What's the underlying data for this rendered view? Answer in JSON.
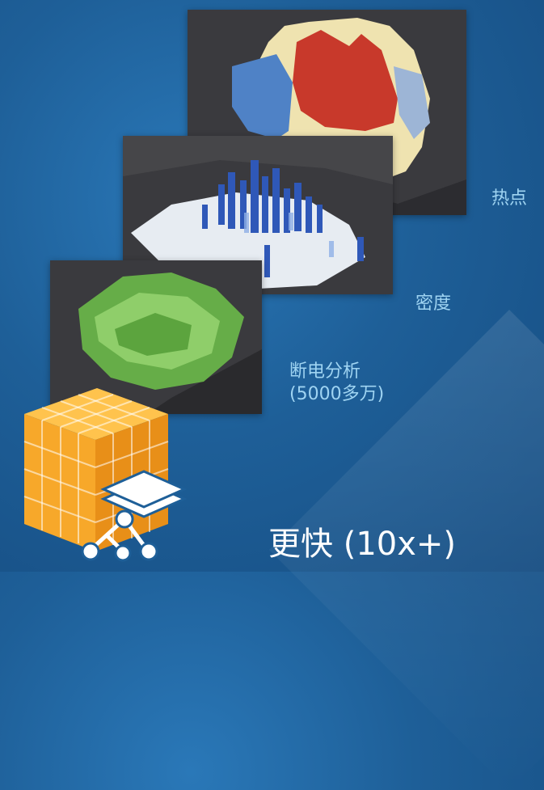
{
  "panels": {
    "hotspot": {
      "label": "热点"
    },
    "density": {
      "label": "密度"
    },
    "outage": {
      "label_line1": "断电分析",
      "label_line2": "(5000多万)"
    }
  },
  "headline": "更快 (10x+)",
  "icons": {
    "cube": "orange-data-cube-icon",
    "layers": "stacked-layers-icon",
    "network": "network-graph-icon"
  },
  "colors": {
    "hot": "#c8392b",
    "warm": "#efe3b0",
    "cool": "#4f82c6",
    "density_blue": "#2f58b8",
    "outage_green": "#6fc24a",
    "cube_orange": "#f7a82a"
  }
}
